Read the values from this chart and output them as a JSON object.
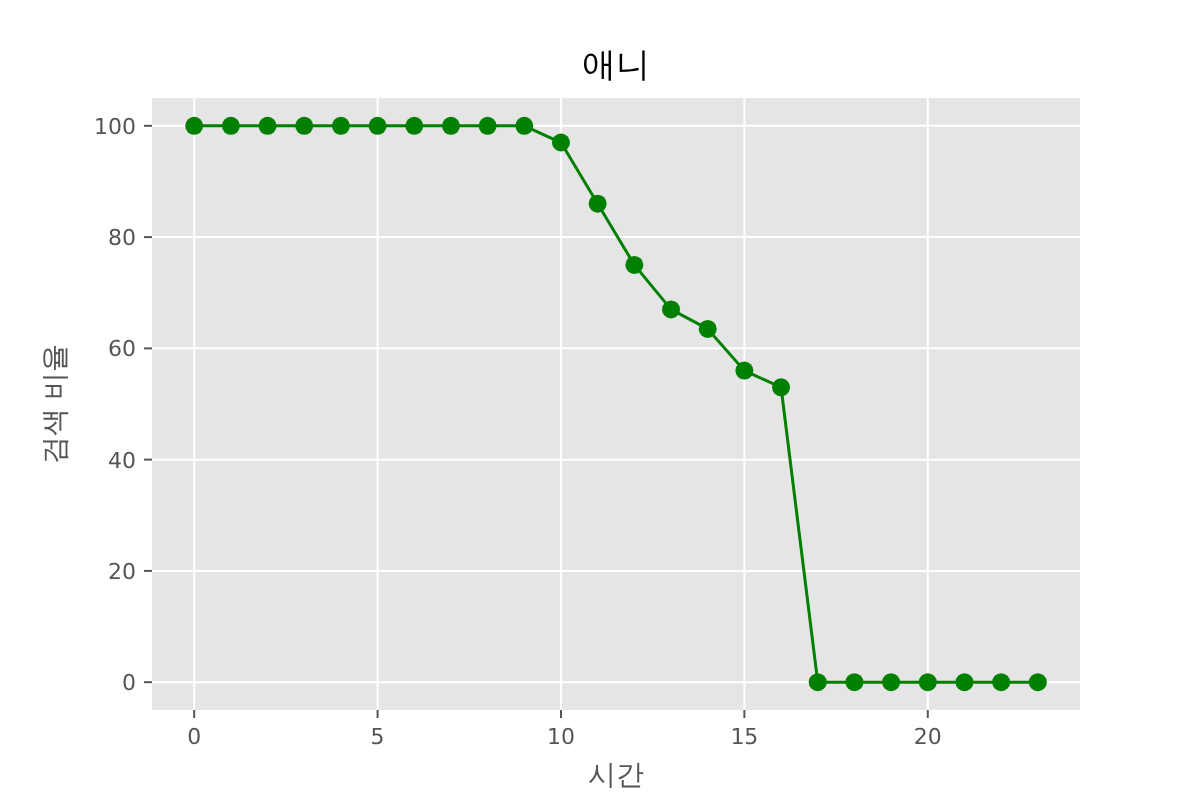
{
  "chart_data": {
    "type": "line",
    "title": "애니",
    "xlabel": "시간",
    "ylabel": "검색 비율",
    "x": [
      0,
      1,
      2,
      3,
      4,
      5,
      6,
      7,
      8,
      9,
      10,
      11,
      12,
      13,
      14,
      15,
      16,
      17,
      18,
      19,
      20,
      21,
      22,
      23
    ],
    "series": [
      {
        "color": "#008000",
        "values": [
          100,
          100,
          100,
          100,
          100,
          100,
          100,
          100,
          100,
          100,
          97,
          86,
          75,
          67,
          63.5,
          56,
          53,
          0,
          0,
          0,
          0,
          0,
          0,
          0
        ]
      }
    ],
    "xlim": [
      -1.15,
      24.15
    ],
    "ylim": [
      -5,
      105
    ],
    "xticks": [
      0,
      5,
      10,
      15,
      20
    ],
    "yticks": [
      0,
      20,
      40,
      60,
      80,
      100
    ],
    "grid": true,
    "marker": "circle",
    "line_style": "solid"
  }
}
